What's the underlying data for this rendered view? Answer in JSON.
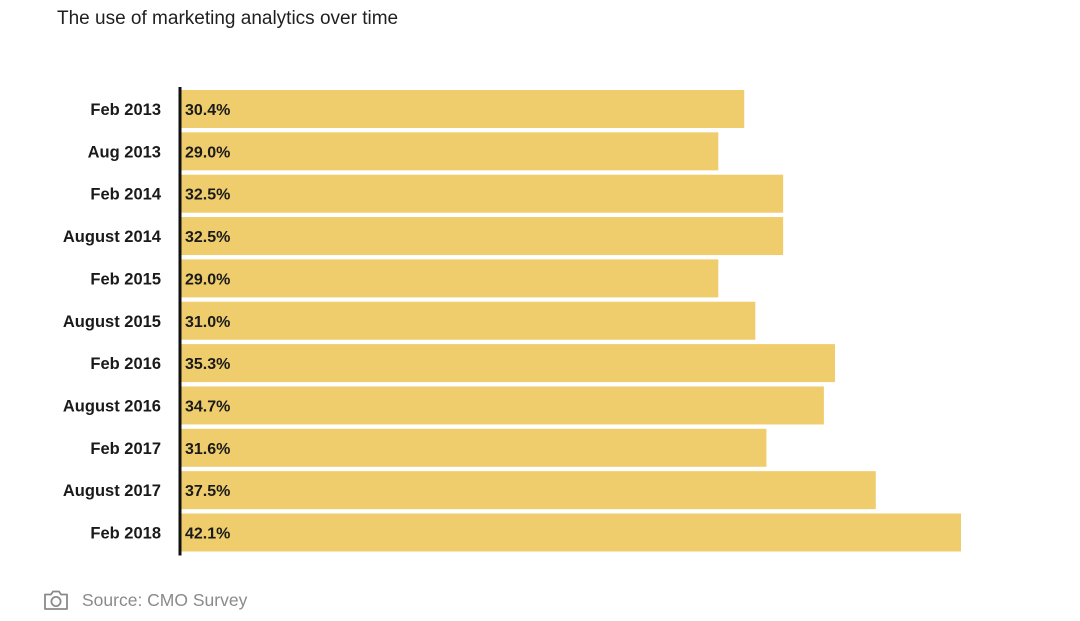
{
  "chart_data": {
    "type": "bar",
    "orientation": "horizontal",
    "title": "The use of marketing analytics over time",
    "categories": [
      "Feb 2013",
      "Aug 2013",
      "Feb 2014",
      "August 2014",
      "Feb 2015",
      "August 2015",
      "Feb 2016",
      "August 2016",
      "Feb 2017",
      "August 2017",
      "Feb 2018"
    ],
    "values": [
      30.4,
      29.0,
      32.5,
      32.5,
      29.0,
      31.0,
      35.3,
      34.7,
      31.6,
      37.5,
      42.1
    ],
    "value_labels": [
      "30.4%",
      "29.0%",
      "32.5%",
      "32.5%",
      "29.0%",
      "31.0%",
      "35.3%",
      "34.7%",
      "31.6%",
      "37.5%",
      "42.1%"
    ],
    "xlim": [
      0,
      42.1
    ],
    "xlabel": "",
    "ylabel": "",
    "grid": false,
    "legend": "none",
    "bar_color": "#efcd6c",
    "axis_color": "#111111"
  },
  "source": {
    "icon": "camera-icon",
    "text": "Source: CMO Survey"
  }
}
